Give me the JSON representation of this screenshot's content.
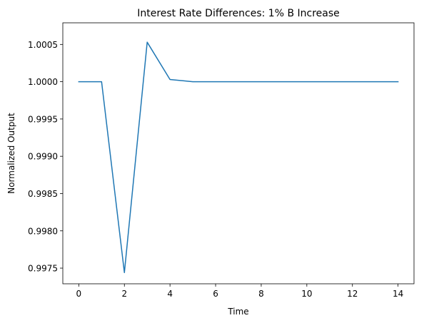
{
  "chart_data": {
    "type": "line",
    "title": "Interest Rate Differences: 1% B Increase",
    "xlabel": "Time",
    "ylabel": "Normalized Output",
    "xlim": [
      -0.7,
      14.7
    ],
    "ylim": [
      0.99729,
      1.00079
    ],
    "xticks": [
      0,
      2,
      4,
      6,
      8,
      10,
      12,
      14
    ],
    "xtick_labels": [
      "0",
      "2",
      "4",
      "6",
      "8",
      "10",
      "12",
      "14"
    ],
    "yticks": [
      0.9975,
      0.998,
      0.9985,
      0.999,
      0.9995,
      1.0,
      1.0005
    ],
    "ytick_labels": [
      "0.9975",
      "0.9980",
      "0.9985",
      "0.9990",
      "0.9995",
      "1.0000",
      "1.0005"
    ],
    "grid": false,
    "legend": "none",
    "series": [
      {
        "color": "#1f77b4",
        "x": [
          0,
          1,
          2,
          3,
          4,
          5,
          6,
          7,
          8,
          9,
          10,
          11,
          12,
          13,
          14
        ],
        "y": [
          1.0,
          1.0,
          0.99744,
          1.00053,
          1.00003,
          1.0,
          1.0,
          1.0,
          1.0,
          1.0,
          1.0,
          1.0,
          1.0,
          1.0,
          1.0
        ]
      }
    ]
  }
}
